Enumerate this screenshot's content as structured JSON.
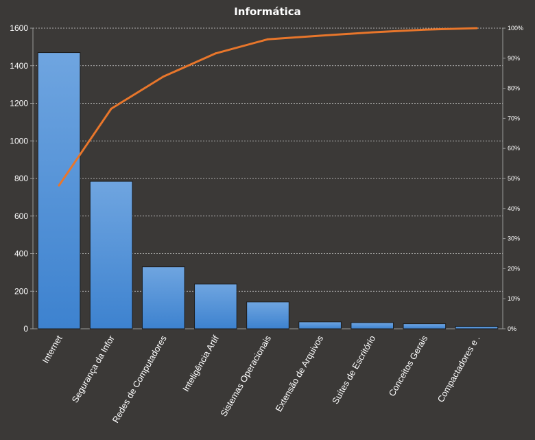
{
  "chart_data": {
    "type": "bar",
    "title": "Informática",
    "xlabel": "",
    "ylabel": "",
    "categories": [
      "Internet",
      "Segurança da Infor",
      "Redes de Computadores",
      "Inteligência Artif",
      "Sistemas Operacionais",
      "Extensão de Arquivos",
      "Suítes de Escritório",
      "Conceitos Gerais",
      "Compactadores e ."
    ],
    "series": [
      {
        "type": "bar",
        "axis": "primary",
        "values": [
          1470,
          785,
          330,
          238,
          143,
          37,
          33,
          27,
          13
        ],
        "color": "#4a8bd2"
      },
      {
        "type": "line",
        "axis": "secondary",
        "values": [
          47.7,
          73.2,
          83.9,
          91.6,
          96.3,
          97.5,
          98.6,
          99.5,
          100
        ],
        "color": "#e8762b"
      }
    ],
    "ylim": [
      0,
      1600
    ],
    "yticks": [
      0,
      200,
      400,
      600,
      800,
      1000,
      1200,
      1400,
      1600
    ],
    "y2lim": [
      0,
      100
    ],
    "y2ticks": [
      "0%",
      "10%",
      "20%",
      "30%",
      "40%",
      "50%",
      "60%",
      "70%",
      "80%",
      "90%",
      "100%"
    ],
    "grid": true,
    "legend": "none",
    "colors": {
      "background": "#3b3937",
      "bar_top": "#6fa5e0",
      "bar_bottom": "#3d82cf",
      "line": "#e8762b",
      "text": "#ffffff",
      "grid": "#d8d8d8"
    }
  }
}
